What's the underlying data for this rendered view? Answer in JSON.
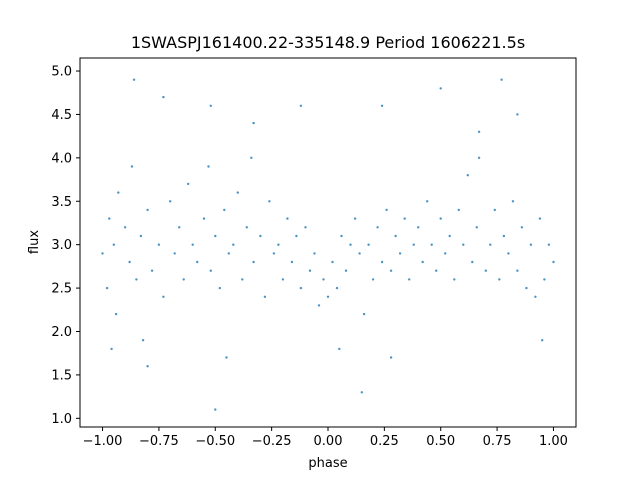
{
  "chart_data": {
    "type": "scatter",
    "title": "1SWASPJ161400.22-335148.9 Period 1606221.5s",
    "xlabel": "phase",
    "ylabel": "flux",
    "xlim": [
      -1.1,
      1.1
    ],
    "ylim": [
      0.9,
      5.15
    ],
    "xticks": [
      -1.0,
      -0.75,
      -0.5,
      -0.25,
      0.0,
      0.25,
      0.5,
      0.75,
      1.0
    ],
    "xtick_labels": [
      "−1.00",
      "−0.75",
      "−0.50",
      "−0.25",
      "0.00",
      "0.25",
      "0.50",
      "0.75",
      "1.00"
    ],
    "yticks": [
      1.0,
      1.5,
      2.0,
      2.5,
      3.0,
      3.5,
      4.0,
      4.5,
      5.0
    ],
    "ytick_labels": [
      "1.0",
      "1.5",
      "2.0",
      "2.5",
      "3.0",
      "3.5",
      "4.0",
      "4.5",
      "5.0"
    ],
    "grid": false,
    "legend": "none",
    "series_color": "#1f77b4",
    "points": [
      {
        "x": -1.0,
        "y": 2.9
      },
      {
        "x": -0.98,
        "y": 2.5
      },
      {
        "x": -0.97,
        "y": 3.3
      },
      {
        "x": -0.95,
        "y": 3.0
      },
      {
        "x": -0.94,
        "y": 2.2
      },
      {
        "x": -0.93,
        "y": 3.6
      },
      {
        "x": -0.9,
        "y": 3.2
      },
      {
        "x": -0.88,
        "y": 2.8
      },
      {
        "x": -0.87,
        "y": 3.9
      },
      {
        "x": -0.85,
        "y": 2.6
      },
      {
        "x": -0.83,
        "y": 3.1
      },
      {
        "x": -0.82,
        "y": 1.9
      },
      {
        "x": -0.8,
        "y": 3.4
      },
      {
        "x": -0.78,
        "y": 2.7
      },
      {
        "x": -0.75,
        "y": 3.0
      },
      {
        "x": -0.73,
        "y": 2.4
      },
      {
        "x": -0.7,
        "y": 3.5
      },
      {
        "x": -0.68,
        "y": 2.9
      },
      {
        "x": -0.66,
        "y": 3.2
      },
      {
        "x": -0.64,
        "y": 2.6
      },
      {
        "x": -0.62,
        "y": 3.7
      },
      {
        "x": -0.6,
        "y": 3.0
      },
      {
        "x": -0.58,
        "y": 2.8
      },
      {
        "x": -0.55,
        "y": 3.3
      },
      {
        "x": -0.53,
        "y": 3.9
      },
      {
        "x": -0.52,
        "y": 2.7
      },
      {
        "x": -0.5,
        "y": 3.1
      },
      {
        "x": -0.48,
        "y": 2.5
      },
      {
        "x": -0.46,
        "y": 3.4
      },
      {
        "x": -0.44,
        "y": 2.9
      },
      {
        "x": -0.42,
        "y": 3.0
      },
      {
        "x": -0.4,
        "y": 3.6
      },
      {
        "x": -0.38,
        "y": 2.6
      },
      {
        "x": -0.36,
        "y": 3.2
      },
      {
        "x": -0.34,
        "y": 4.0
      },
      {
        "x": -0.33,
        "y": 2.8
      },
      {
        "x": -0.3,
        "y": 3.1
      },
      {
        "x": -0.28,
        "y": 2.4
      },
      {
        "x": -0.26,
        "y": 3.5
      },
      {
        "x": -0.24,
        "y": 2.9
      },
      {
        "x": -0.22,
        "y": 3.0
      },
      {
        "x": -0.2,
        "y": 2.6
      },
      {
        "x": -0.18,
        "y": 3.3
      },
      {
        "x": -0.16,
        "y": 2.8
      },
      {
        "x": -0.14,
        "y": 3.1
      },
      {
        "x": -0.12,
        "y": 2.5
      },
      {
        "x": -0.1,
        "y": 3.2
      },
      {
        "x": -0.08,
        "y": 2.7
      },
      {
        "x": -0.06,
        "y": 2.9
      },
      {
        "x": -0.04,
        "y": 2.3
      },
      {
        "x": -0.02,
        "y": 2.6
      },
      {
        "x": 0.0,
        "y": 2.4
      },
      {
        "x": 0.02,
        "y": 2.8
      },
      {
        "x": 0.04,
        "y": 2.5
      },
      {
        "x": 0.06,
        "y": 3.1
      },
      {
        "x": 0.08,
        "y": 2.7
      },
      {
        "x": 0.1,
        "y": 3.0
      },
      {
        "x": 0.12,
        "y": 3.3
      },
      {
        "x": 0.14,
        "y": 2.9
      },
      {
        "x": 0.16,
        "y": 2.2
      },
      {
        "x": 0.18,
        "y": 3.0
      },
      {
        "x": 0.2,
        "y": 2.6
      },
      {
        "x": 0.22,
        "y": 3.2
      },
      {
        "x": 0.24,
        "y": 2.8
      },
      {
        "x": 0.26,
        "y": 3.4
      },
      {
        "x": 0.28,
        "y": 2.7
      },
      {
        "x": 0.3,
        "y": 3.1
      },
      {
        "x": 0.32,
        "y": 2.9
      },
      {
        "x": 0.34,
        "y": 3.3
      },
      {
        "x": 0.36,
        "y": 2.6
      },
      {
        "x": 0.38,
        "y": 3.0
      },
      {
        "x": 0.4,
        "y": 3.2
      },
      {
        "x": 0.42,
        "y": 2.8
      },
      {
        "x": 0.44,
        "y": 3.5
      },
      {
        "x": 0.46,
        "y": 3.0
      },
      {
        "x": 0.48,
        "y": 2.7
      },
      {
        "x": 0.5,
        "y": 3.3
      },
      {
        "x": 0.52,
        "y": 2.9
      },
      {
        "x": 0.54,
        "y": 3.1
      },
      {
        "x": 0.56,
        "y": 2.6
      },
      {
        "x": 0.58,
        "y": 3.4
      },
      {
        "x": 0.6,
        "y": 3.0
      },
      {
        "x": 0.62,
        "y": 3.8
      },
      {
        "x": 0.64,
        "y": 2.8
      },
      {
        "x": 0.66,
        "y": 3.2
      },
      {
        "x": 0.67,
        "y": 4.0
      },
      {
        "x": 0.7,
        "y": 2.7
      },
      {
        "x": 0.72,
        "y": 3.0
      },
      {
        "x": 0.74,
        "y": 3.4
      },
      {
        "x": 0.76,
        "y": 2.6
      },
      {
        "x": 0.78,
        "y": 3.1
      },
      {
        "x": 0.8,
        "y": 2.9
      },
      {
        "x": 0.82,
        "y": 3.5
      },
      {
        "x": 0.84,
        "y": 2.7
      },
      {
        "x": 0.86,
        "y": 3.2
      },
      {
        "x": 0.88,
        "y": 2.5
      },
      {
        "x": 0.9,
        "y": 3.0
      },
      {
        "x": 0.92,
        "y": 2.4
      },
      {
        "x": 0.94,
        "y": 3.3
      },
      {
        "x": 0.96,
        "y": 2.6
      },
      {
        "x": 0.98,
        "y": 3.0
      },
      {
        "x": 1.0,
        "y": 2.8
      },
      {
        "x": -0.96,
        "y": 1.8
      },
      {
        "x": -0.8,
        "y": 1.6
      },
      {
        "x": -0.73,
        "y": 4.7
      },
      {
        "x": -0.52,
        "y": 4.6
      },
      {
        "x": -0.45,
        "y": 1.7
      },
      {
        "x": -0.33,
        "y": 4.4
      },
      {
        "x": -0.12,
        "y": 4.6
      },
      {
        "x": 0.05,
        "y": 1.8
      },
      {
        "x": 0.24,
        "y": 4.6
      },
      {
        "x": 0.28,
        "y": 1.7
      },
      {
        "x": 0.5,
        "y": 4.8
      },
      {
        "x": 0.67,
        "y": 4.3
      },
      {
        "x": 0.84,
        "y": 4.5
      },
      {
        "x": 0.95,
        "y": 1.9
      },
      {
        "x": -0.5,
        "y": 1.1
      },
      {
        "x": 0.15,
        "y": 1.3
      },
      {
        "x": -0.86,
        "y": 4.9
      },
      {
        "x": 0.77,
        "y": 4.9
      }
    ]
  }
}
